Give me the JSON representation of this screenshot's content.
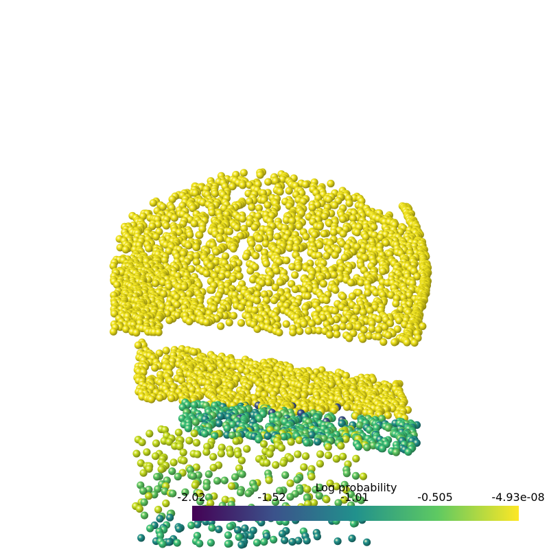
{
  "chart_data": {
    "type": "scatter",
    "title": "",
    "colorbar": {
      "title": "Log probability",
      "range": [
        -2.02,
        -4.93e-08
      ],
      "tick_labels": [
        "-2.02",
        "-1.52",
        "-1.01",
        "-0.505",
        "-4.93e-08"
      ],
      "colormap": "viridis",
      "colors": [
        "#440154",
        "#3b528b",
        "#21918c",
        "#5ec962",
        "#fde725"
      ]
    },
    "point_color": "#f2e51b"
  }
}
